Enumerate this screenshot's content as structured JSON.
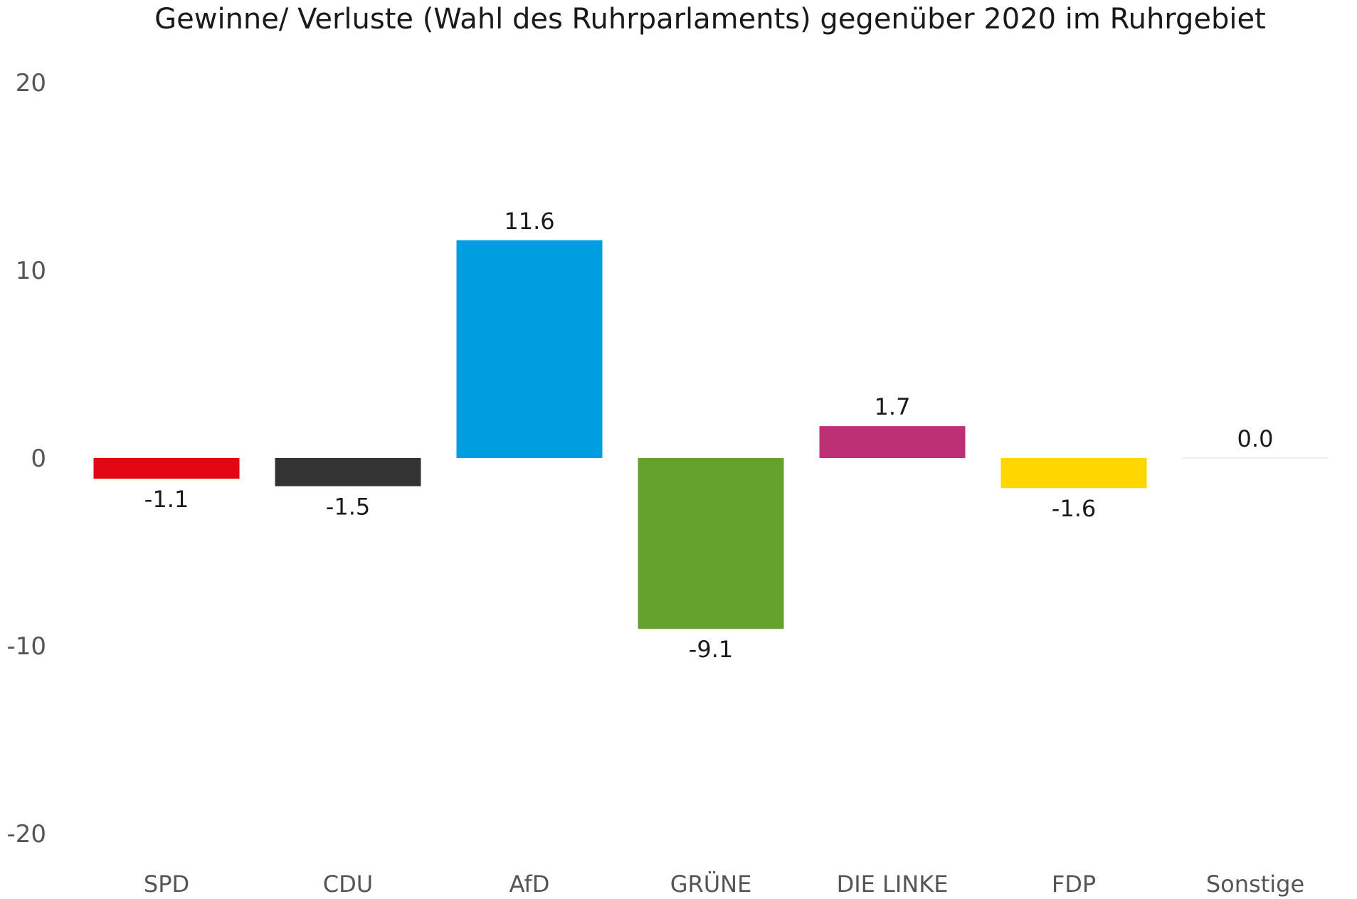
{
  "chart_data": {
    "type": "bar",
    "title": "Gewinne/ Verluste (Wahl des Ruhrparlaments) gegenüber 2020 im Ruhrgebiet",
    "xlabel": "",
    "ylabel": "",
    "categories": [
      "SPD",
      "CDU",
      "AfD",
      "GRÜNE",
      "DIE LINKE",
      "FDP",
      "Sonstige"
    ],
    "values": [
      -1.1,
      -1.5,
      11.6,
      -9.1,
      1.7,
      -1.6,
      0.0
    ],
    "value_labels": [
      "-1.1",
      "-1.5",
      "11.6",
      "-9.1",
      "1.7",
      "-1.6",
      "0.0"
    ],
    "colors": [
      "#e30613",
      "#333333",
      "#009ee0",
      "#64a12d",
      "#be3075",
      "#ffd600",
      "#eeeeee"
    ],
    "ylim": [
      -20,
      20
    ],
    "yticks": [
      20,
      10,
      0,
      -10,
      -20
    ],
    "ytick_labels": [
      "20",
      "10",
      "0",
      "-10",
      "-20"
    ],
    "grid": false,
    "legend": "none"
  }
}
